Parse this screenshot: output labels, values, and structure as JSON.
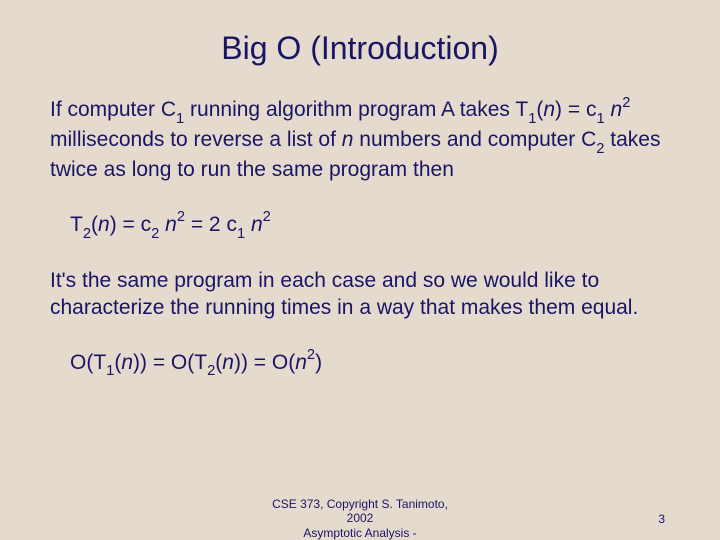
{
  "colors": {
    "background": "#e4dbce",
    "text": "#1a1464"
  },
  "typography": {
    "title_fontsize": 32,
    "body_fontsize": 21,
    "footer_fontsize": 12,
    "font_family": "Arial, Helvetica, sans-serif"
  },
  "title": "Big O (Introduction)",
  "para1": {
    "prefix": "If computer C",
    "c1_sub": "1",
    "mid1": " running algorithm program A takes T",
    "t1_sub": "1",
    "mid2": "(",
    "n1": "n",
    "mid3": ") = c",
    "c1b_sub": "1",
    "sp": " ",
    "n2": "n",
    "sq": "2",
    "mid4": " milliseconds to reverse a list of ",
    "n3": "n",
    "mid5": " numbers and computer C",
    "c2_sub": "2",
    "mid6": " takes twice as long to run the same program then"
  },
  "eq1": {
    "p1": "T",
    "s1": "2",
    "p2": "(",
    "n1": "n",
    "p3": ") = c",
    "s2": "2",
    "sp1": " ",
    "n2": "n",
    "e1": "2",
    "p4": " = 2 c",
    "s3": "1",
    "sp2": " ",
    "n3": "n",
    "e2": "2"
  },
  "para2": "It's the same program in each case and so we would like to characterize the running times in a way that makes them equal.",
  "eq2": {
    "p1": "O(T",
    "s1": "1",
    "p2": "(",
    "n1": "n",
    "p3": ")) = O(T",
    "s2": "2",
    "p4": "(",
    "n2": "n",
    "p5": ")) = O(",
    "n3": "n",
    "e1": "2",
    "p6": ")"
  },
  "footer": {
    "line1": "CSE 373, Copyright S. Tanimoto,",
    "line2": "2002",
    "line3": "Asymptotic Analysis -",
    "page": "3"
  }
}
